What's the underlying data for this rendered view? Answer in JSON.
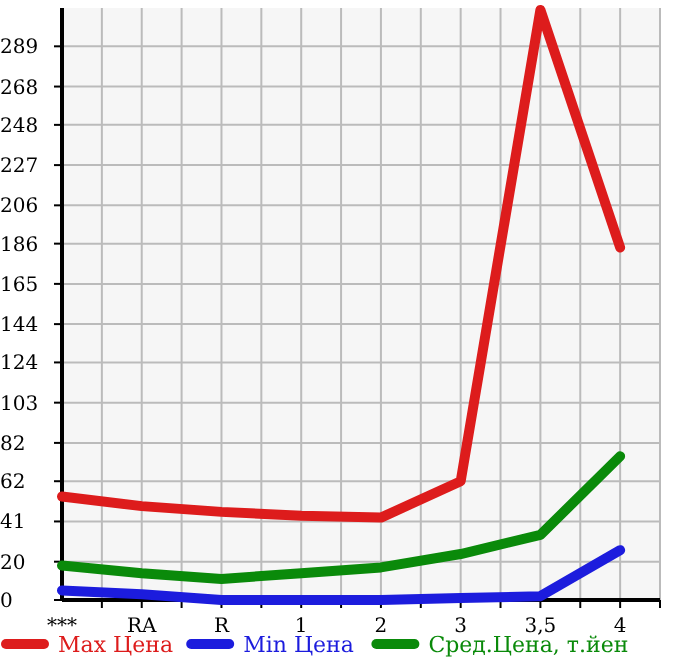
{
  "chart_data": {
    "type": "line",
    "categories": [
      "***",
      "RA",
      "R",
      "1",
      "2",
      "3",
      "3,5",
      "4"
    ],
    "series": [
      {
        "name": "Max Цена",
        "color": "#dd1c1c",
        "values": [
          54,
          49,
          46,
          44,
          43,
          62,
          308,
          184
        ]
      },
      {
        "name": "Min Цена",
        "color": "#1c1cdd",
        "values": [
          5,
          3,
          0,
          0,
          0,
          1,
          2,
          26
        ]
      },
      {
        "name": "Сред.Цена, т.йен",
        "color": "#0a8a0a",
        "values": [
          18,
          14,
          11,
          14,
          17,
          24,
          34,
          75
        ]
      }
    ],
    "ylim": [
      0,
      309
    ],
    "yticks": [
      0,
      20,
      41,
      62,
      82,
      103,
      124,
      144,
      165,
      186,
      206,
      227,
      248,
      268,
      289
    ],
    "grid": true,
    "legend": "bottom",
    "marker": "none",
    "line_style": "solid"
  }
}
